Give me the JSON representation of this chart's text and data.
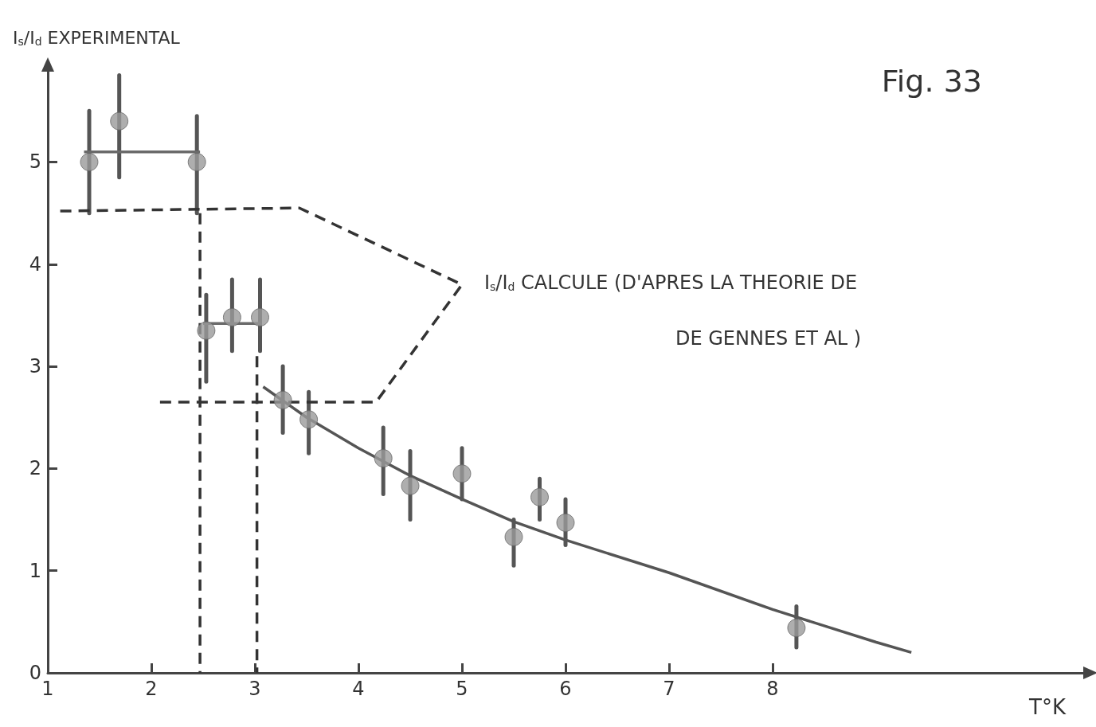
{
  "chart_data": {
    "type": "scatter",
    "title": "Fig. 33",
    "xlabel": "T°K",
    "ylabel": "I$_{s}$/I$_{d}$ EXPERIMENTAL",
    "annotations": [
      "I$_{s}$/I$_{d}$ CALCULE (D'APRES LA THEORIE DE\nDE GENNES ET AL )"
    ],
    "series": [
      {
        "marker": "circle",
        "color": "#9a9a9a",
        "x": [
          1.4,
          1.69,
          2.44,
          2.53,
          2.78,
          3.05,
          3.27,
          3.52,
          4.24,
          4.5,
          5.0,
          5.5,
          5.75,
          6.0,
          8.23
        ],
        "values": [
          5.0,
          5.4,
          5.0,
          3.35,
          3.48,
          3.48,
          2.67,
          2.48,
          2.1,
          1.83,
          1.95,
          1.33,
          1.72,
          1.47,
          0.44
        ],
        "errors": [
          [
            4.5,
            5.5
          ],
          [
            4.85,
            5.85
          ],
          [
            4.5,
            5.45
          ],
          [
            2.85,
            3.7
          ],
          [
            3.15,
            3.85
          ],
          [
            3.15,
            3.85
          ],
          [
            2.35,
            3.0
          ],
          [
            2.15,
            2.75
          ],
          [
            1.75,
            2.4
          ],
          [
            1.5,
            2.17
          ],
          [
            1.7,
            2.2
          ],
          [
            1.05,
            1.5
          ],
          [
            1.5,
            1.9
          ],
          [
            1.25,
            1.7
          ],
          [
            0.25,
            0.65
          ]
        ]
      },
      {
        "type": "line",
        "color": "#6a6a6a",
        "line_style": "solid",
        "x": [
          1.35,
          2.47
        ],
        "values": [
          5.1,
          5.1
        ]
      },
      {
        "type": "line",
        "color": "#6a6a6a",
        "line_style": "solid",
        "x": [
          2.5,
          3.05
        ],
        "values": [
          3.42,
          3.42
        ]
      },
      {
        "type": "line",
        "color": "#555555",
        "line_style": "solid",
        "x": [
          3.08,
          3.5,
          4.0,
          4.5,
          5.0,
          5.5,
          6.0,
          7.0,
          8.0,
          9.0,
          9.34
        ],
        "values": [
          2.8,
          2.5,
          2.2,
          1.93,
          1.7,
          1.48,
          1.3,
          0.98,
          0.62,
          0.3,
          0.2
        ]
      },
      {
        "type": "line",
        "color": "#333333",
        "line_style": "dashed",
        "x": [
          1.12,
          3.43,
          5.0,
          4.17,
          2.08
        ],
        "values": [
          4.52,
          4.55,
          3.8,
          2.65,
          2.65
        ]
      },
      {
        "type": "line",
        "color": "#333333",
        "line_style": "dashed",
        "x": [
          2.47,
          2.47
        ],
        "values": [
          4.5,
          0
        ]
      },
      {
        "type": "line",
        "color": "#333333",
        "line_style": "dashed",
        "x": [
          3.02,
          3.02
        ],
        "values": [
          3.1,
          0
        ]
      }
    ],
    "grid": false,
    "xlim": [
      1,
      11
    ],
    "xticks": [
      1,
      2,
      3,
      4,
      5,
      6,
      7,
      8
    ],
    "ylim": [
      0,
      5.9
    ],
    "yticks": [
      0,
      1,
      2,
      3,
      4,
      5
    ]
  }
}
